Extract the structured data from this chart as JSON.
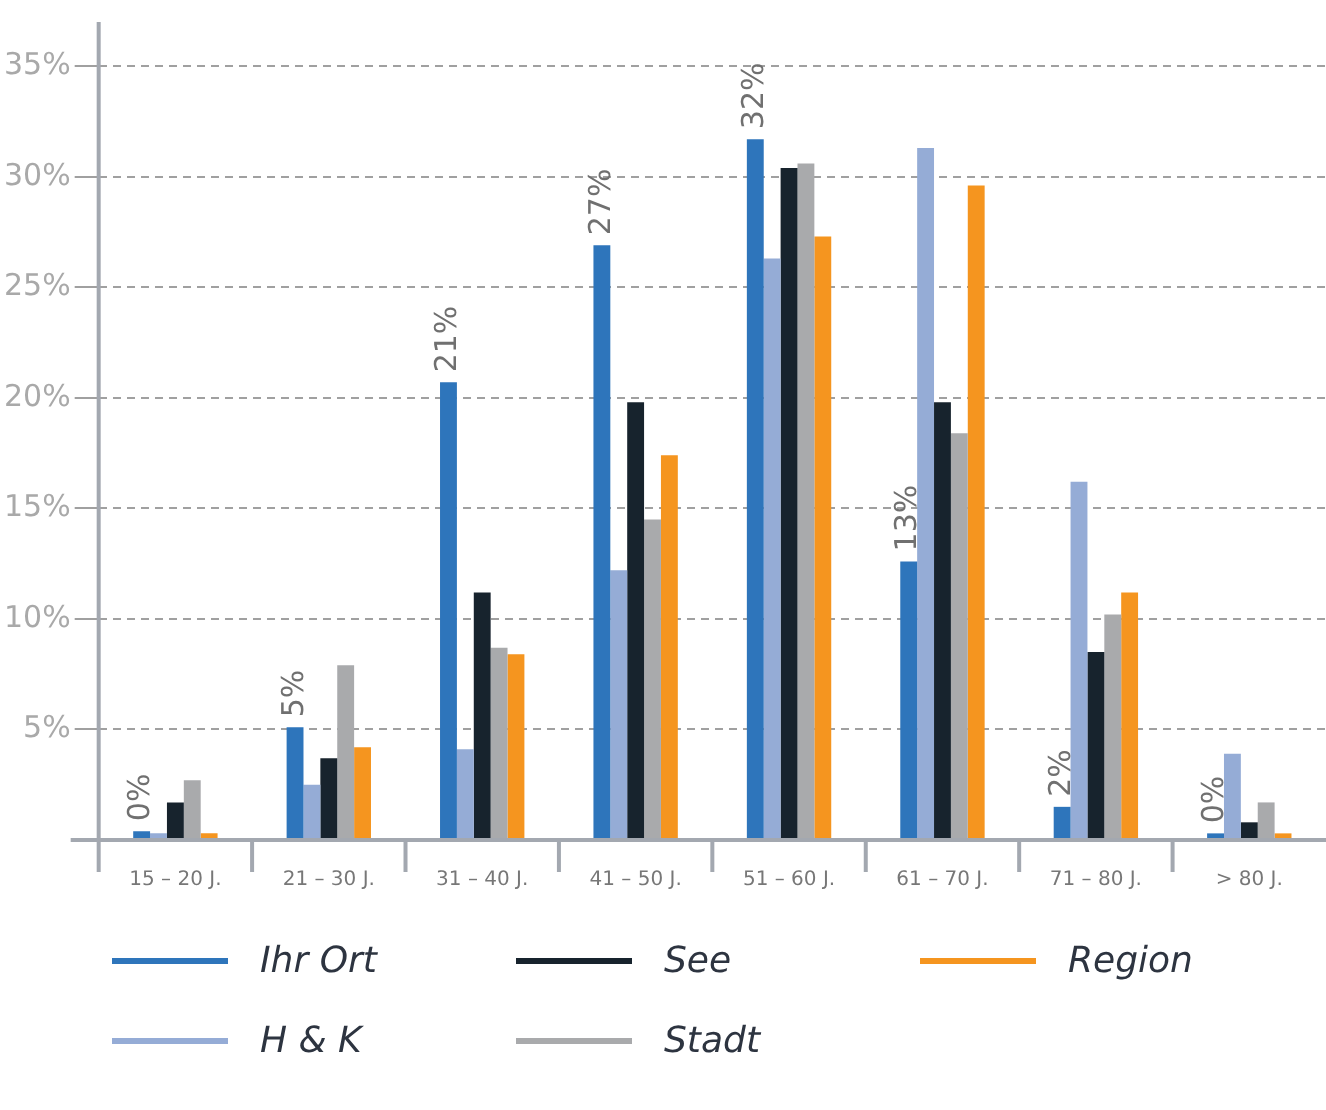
{
  "chart_data": {
    "type": "bar",
    "categories": [
      "15 – 20 J.",
      "21 – 30 J.",
      "31 – 40 J.",
      "41 – 50 J.",
      "51 – 60 J.",
      "61 – 70 J.",
      "71 – 80 J.",
      "> 80 J."
    ],
    "series": [
      {
        "name": "Ihr Ort",
        "color": "#2e75bb",
        "values": [
          0.4,
          5.1,
          20.7,
          26.9,
          31.7,
          12.6,
          1.5,
          0.3
        ],
        "value_labels": [
          "0%",
          "5%",
          "21%",
          "27%",
          "32%",
          "13%",
          "2%",
          "0%"
        ]
      },
      {
        "name": "H & K",
        "color": "#95acd6",
        "values": [
          0.3,
          2.5,
          4.1,
          12.2,
          26.3,
          31.3,
          16.2,
          3.9
        ]
      },
      {
        "name": "See",
        "color": "#17232d",
        "values": [
          1.7,
          3.7,
          11.2,
          19.8,
          30.4,
          19.8,
          8.5,
          0.8
        ]
      },
      {
        "name": "Stadt",
        "color": "#a9aaac",
        "values": [
          2.7,
          7.9,
          8.7,
          14.5,
          30.6,
          18.4,
          10.2,
          1.7
        ]
      },
      {
        "name": "Region",
        "color": "#f5951f",
        "values": [
          0.3,
          4.2,
          8.4,
          17.4,
          27.3,
          29.6,
          11.2,
          0.3
        ]
      }
    ],
    "ylim": [
      0,
      37
    ],
    "yticks": [
      {
        "value": 5,
        "label": "5%"
      },
      {
        "value": 10,
        "label": "10%"
      },
      {
        "value": 15,
        "label": "15%"
      },
      {
        "value": 20,
        "label": "20%"
      },
      {
        "value": 25,
        "label": "25%"
      },
      {
        "value": 30,
        "label": "30%"
      },
      {
        "value": 35,
        "label": "35%"
      }
    ],
    "grid": "y",
    "legend": "bottom"
  }
}
